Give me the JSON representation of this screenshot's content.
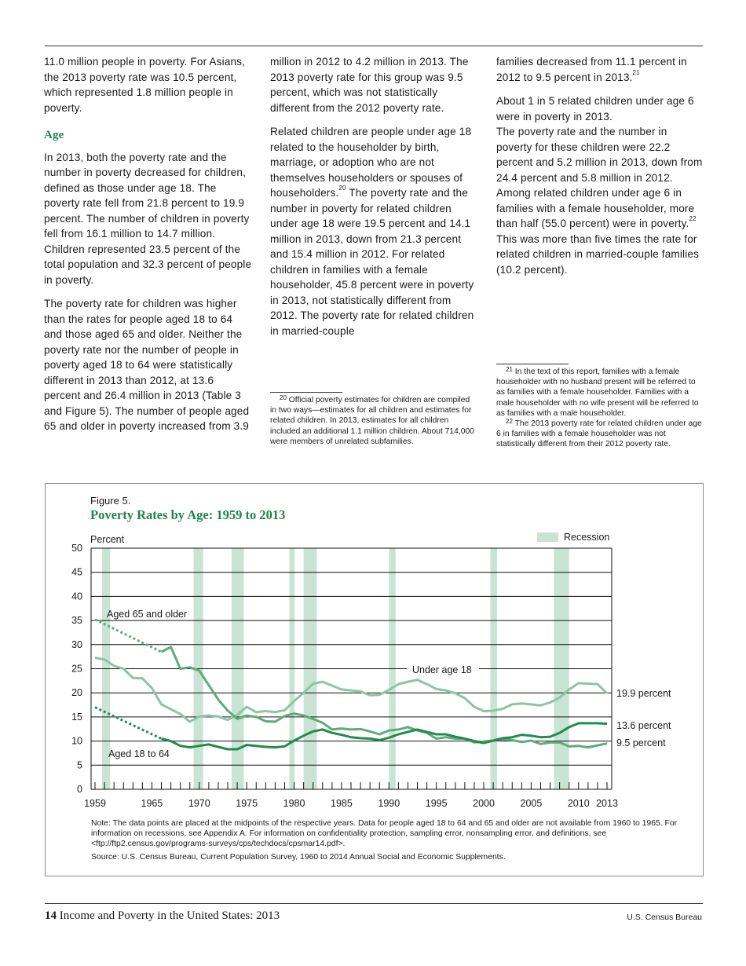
{
  "col1": {
    "p0": "11.0 million people in poverty. For Asians, the 2013 poverty rate was 10.5 percent, which represented 1.8 million people in poverty.",
    "heading": "Age",
    "p1": "In 2013, both the poverty rate and the number in poverty decreased for children, defined as those under age 18. The poverty rate fell from 21.8 percent to 19.9 percent. The number of children in poverty fell from 16.1 million to 14.7 million. Children represented 23.5 percent of the total population and 32.3 percent of people in poverty.",
    "p2": "The poverty rate for children was higher than the rates for people aged 18 to 64 and those aged 65 and older. Neither the poverty rate nor the number of people in poverty aged 18 to 64 were statistically different in 2013 than 2012, at 13.6 percent and 26.4 million in 2013 (Table 3 and Figure 5). The number of people aged 65 and older in poverty increased from 3.9"
  },
  "col2": {
    "p3": "million in 2012 to 4.2 million in 2013. The 2013 poverty rate for this group was 9.5 percent, which was not statistically different from the 2012 poverty rate.",
    "p4a": "Related children are people under age 18 related to the householder by birth, marriage, or adoption who are not themselves householders or spouses of householders.",
    "p4sup": "20",
    "p4b": " The poverty rate and the number in poverty for related children under age 18 were 19.5 percent and 14.1 million in 2013, down from 21.3 percent and 15.4 million in 2012. For related children in families with a female householder, 45.8 percent were in poverty in 2013, not statistically different from 2012. The poverty rate for related children in married-couple"
  },
  "col3": {
    "p5a": "families decreased from 11.1 percent in 2012 to 9.5 percent in 2013.",
    "p5sup": "21",
    "p6a": "About 1 in 5 related children under age 6 were in poverty in 2013.",
    "p6b": "The poverty rate and the number in poverty for these children were 22.2 percent and 5.2 million in 2013, down from 24.4 percent and 5.8 million in 2012. Among related children under age 6 in families with a female householder, more than half (55.0 percent) were in poverty.",
    "p6sup": "22",
    "p6c": " This was more than five times the rate for related children in married-couple families (10.2 percent)."
  },
  "footnotes": {
    "fn20_num": "20",
    "fn20": " Official poverty estimates for children are compiled in two ways—estimates for all children and estimates for related children. In 2013, estimates for all children included an additional 1.1 million children. About 714,000 were members of unrelated subfamilies.",
    "fn21_num": "21",
    "fn21": " In the text of this report, families with a female householder with no husband present will be referred to as families with a female householder. Families with a male householder with no wife present will be referred to as families with a male householder.",
    "fn22_num": "22",
    "fn22": " The 2013 poverty rate for related children under age 6 in families with a female householder was not statistically different from their 2012 poverty rate."
  },
  "figure": {
    "label": "Figure 5.",
    "title": "Poverty Rates by Age: 1959 to 2013",
    "note": "Note: The data points are placed at the midpoints of the respective years. Data for people aged 18 to 64 and 65 and older are not available from 1960 to 1965. For information on recessions, see Appendix A.  For information on confidentiality protection, sampling error, nonsampling error, and definitions, see <ftp://ftp2.census.gov/programs-surveys/cps/techdocs/cpsmar14.pdf>.",
    "source": "Source: U.S. Census Bureau, Current Population Survey, 1960 to 2014 Annual Social and Economic Supplements."
  },
  "chart_data": {
    "type": "line",
    "title": "Poverty Rates by Age: 1959 to 2013",
    "ylabel": "Percent",
    "ylim": [
      0,
      50
    ],
    "yticks": [
      0,
      5,
      10,
      15,
      20,
      25,
      30,
      35,
      40,
      45,
      50
    ],
    "xlim": [
      1959,
      2013
    ],
    "xtick_labels": [
      "1959",
      "1965",
      "1970",
      "1975",
      "1980",
      "1985",
      "1990",
      "1995",
      "2000",
      "2005",
      "2010",
      "2013"
    ],
    "grid": true,
    "legend": {
      "label": "Recession",
      "position": "top-right"
    },
    "recessions": [
      [
        1960.25,
        1961.1
      ],
      [
        1969.9,
        1970.9
      ],
      [
        1973.9,
        1975.2
      ],
      [
        1980.0,
        1980.55
      ],
      [
        1981.5,
        1982.9
      ],
      [
        1990.5,
        1991.2
      ],
      [
        2001.2,
        2001.9
      ],
      [
        2007.9,
        2009.5
      ]
    ],
    "series": [
      {
        "name": "Under age 18",
        "end_label": "19.9 percent",
        "color": "#8cc5a2",
        "x_start": 1959,
        "values": [
          27.3,
          26.9,
          25.6,
          25.0,
          23.1,
          23.0,
          21.0,
          17.6,
          16.6,
          15.6,
          14.0,
          15.1,
          15.3,
          15.1,
          14.4,
          15.4,
          17.1,
          16.0,
          16.2,
          16.0,
          16.4,
          18.3,
          20.0,
          21.9,
          22.3,
          21.5,
          20.7,
          20.5,
          20.3,
          19.5,
          19.6,
          20.6,
          21.8,
          22.3,
          22.7,
          21.8,
          20.8,
          20.5,
          19.9,
          18.9,
          17.1,
          16.2,
          16.3,
          16.7,
          17.6,
          17.8,
          17.6,
          17.4,
          18.0,
          19.0,
          20.7,
          22.0,
          21.9,
          21.8,
          19.9
        ]
      },
      {
        "name": "Aged 65 and older",
        "end_label": "9.5 percent",
        "color": "#5fab7c",
        "x_start": 1966,
        "dotted_from": {
          "year": 1959,
          "value": 35.2
        },
        "values": [
          28.5,
          29.5,
          25.0,
          25.3,
          24.6,
          21.6,
          18.6,
          16.3,
          14.6,
          15.3,
          15.0,
          14.1,
          14.0,
          15.2,
          15.7,
          15.3,
          14.6,
          13.8,
          12.4,
          12.6,
          12.4,
          12.5,
          12.0,
          11.4,
          12.2,
          12.4,
          12.9,
          12.2,
          11.7,
          10.5,
          10.8,
          10.5,
          10.5,
          9.7,
          9.9,
          10.1,
          10.4,
          10.2,
          9.8,
          10.1,
          9.4,
          9.7,
          9.7,
          8.9,
          9.0,
          8.7,
          9.1,
          9.5
        ]
      },
      {
        "name": "Aged 18 to 64",
        "end_label": "13.6 percent",
        "color": "#218c4f",
        "x_start": 1966,
        "dotted_from": {
          "year": 1959,
          "value": 17.0
        },
        "values": [
          10.5,
          10.0,
          9.0,
          8.7,
          9.0,
          9.3,
          8.8,
          8.3,
          8.3,
          9.2,
          9.0,
          8.8,
          8.7,
          8.9,
          10.1,
          11.1,
          12.0,
          12.4,
          11.7,
          11.3,
          10.8,
          10.6,
          10.5,
          10.2,
          10.7,
          11.4,
          11.9,
          12.4,
          11.9,
          11.4,
          11.4,
          10.9,
          10.5,
          10.0,
          9.6,
          10.1,
          10.6,
          10.8,
          11.3,
          11.1,
          10.8,
          10.9,
          11.7,
          12.9,
          13.7,
          13.7,
          13.7,
          13.6
        ]
      }
    ],
    "recession_color": "#c9e3d4"
  },
  "footer": {
    "page_number": "14",
    "title": " Income and Poverty in the United States: 2013",
    "publisher": "U.S. Census Bureau"
  }
}
